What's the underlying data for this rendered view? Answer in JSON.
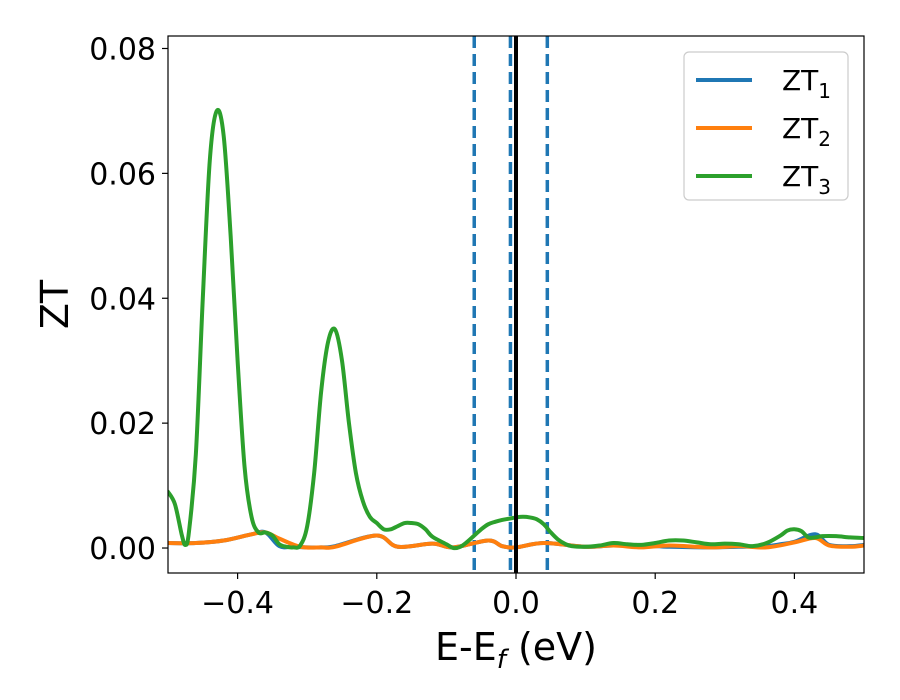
{
  "chart_data": {
    "type": "line",
    "xlabel_main": "E-E",
    "xlabel_sub": "f",
    "xlabel_unit": " (eV)",
    "ylabel": "ZT",
    "xlim": [
      -0.5,
      0.5
    ],
    "ylim": [
      -0.004,
      0.082
    ],
    "grid": false,
    "legend_position": "top-right",
    "x_ticks": [
      -0.4,
      -0.2,
      0.0,
      0.2,
      0.4
    ],
    "x_tick_labels": [
      "−0.4",
      "−0.2",
      "0.0",
      "0.2",
      "0.4"
    ],
    "y_ticks": [
      0.0,
      0.02,
      0.04,
      0.06,
      0.08
    ],
    "y_tick_labels": [
      "0.00",
      "0.02",
      "0.04",
      "0.06",
      "0.08"
    ],
    "vertical_lines": [
      {
        "x": -0.06,
        "style": "dashed",
        "color": "#1f77b4"
      },
      {
        "x": -0.008,
        "style": "dashed",
        "color": "#1f77b4"
      },
      {
        "x": 0.0,
        "style": "solid",
        "color": "#000000"
      },
      {
        "x": 0.045,
        "style": "dashed",
        "color": "#1f77b4"
      }
    ],
    "series": [
      {
        "name": "ZT",
        "sub": "1",
        "color": "#1f77b4",
        "points": [
          [
            -0.5,
            0.0008
          ],
          [
            -0.46,
            0.0008
          ],
          [
            -0.42,
            0.0012
          ],
          [
            -0.38,
            0.0022
          ],
          [
            -0.36,
            0.0025
          ],
          [
            -0.34,
            0.0003
          ],
          [
            -0.32,
            0.0002
          ],
          [
            -0.3,
            0.0001
          ],
          [
            -0.28,
            0.0001
          ],
          [
            -0.26,
            0.0003
          ],
          [
            -0.2,
            0.002
          ],
          [
            -0.17,
            0.0002
          ],
          [
            -0.12,
            0.0007
          ],
          [
            -0.09,
            0.0001
          ],
          [
            -0.04,
            0.0012
          ],
          [
            -0.02,
            0.0003
          ],
          [
            0.0,
            0.0001
          ],
          [
            0.04,
            0.0008
          ],
          [
            0.1,
            0.0002
          ],
          [
            0.14,
            0.0004
          ],
          [
            0.2,
            0.0003
          ],
          [
            0.22,
            0.0002
          ],
          [
            0.28,
            0.0001
          ],
          [
            0.32,
            0.0002
          ],
          [
            0.36,
            0.0003
          ],
          [
            0.38,
            0.0006
          ],
          [
            0.4,
            0.001
          ],
          [
            0.43,
            0.0022
          ],
          [
            0.45,
            0.0005
          ],
          [
            0.48,
            0.0003
          ],
          [
            0.5,
            0.0005
          ]
        ]
      },
      {
        "name": "ZT",
        "sub": "2",
        "color": "#ff7f0e",
        "points": [
          [
            -0.5,
            0.0008
          ],
          [
            -0.46,
            0.0008
          ],
          [
            -0.42,
            0.0012
          ],
          [
            -0.38,
            0.0022
          ],
          [
            -0.36,
            0.0025
          ],
          [
            -0.34,
            0.0015
          ],
          [
            -0.31,
            0.0002
          ],
          [
            -0.28,
            0.0001
          ],
          [
            -0.26,
            0.0002
          ],
          [
            -0.2,
            0.002
          ],
          [
            -0.17,
            0.0002
          ],
          [
            -0.12,
            0.0007
          ],
          [
            -0.09,
            0.0001
          ],
          [
            -0.04,
            0.0012
          ],
          [
            -0.02,
            0.0003
          ],
          [
            0.0,
            0.0001
          ],
          [
            0.04,
            0.0008
          ],
          [
            0.1,
            0.0002
          ],
          [
            0.14,
            0.0004
          ],
          [
            0.18,
            0.0001
          ],
          [
            0.22,
            0.0004
          ],
          [
            0.28,
            0.0001
          ],
          [
            0.32,
            0.0003
          ],
          [
            0.36,
            0.0001
          ],
          [
            0.4,
            0.0009
          ],
          [
            0.43,
            0.0016
          ],
          [
            0.45,
            0.0004
          ],
          [
            0.48,
            0.0002
          ],
          [
            0.5,
            0.0004
          ]
        ]
      },
      {
        "name": "ZT",
        "sub": "3",
        "color": "#2ca02c",
        "points": [
          [
            -0.5,
            0.009
          ],
          [
            -0.49,
            0.007
          ],
          [
            -0.48,
            0.002
          ],
          [
            -0.475,
            0.0005
          ],
          [
            -0.47,
            0.0025
          ],
          [
            -0.46,
            0.015
          ],
          [
            -0.45,
            0.04
          ],
          [
            -0.44,
            0.062
          ],
          [
            -0.43,
            0.07
          ],
          [
            -0.42,
            0.066
          ],
          [
            -0.41,
            0.05
          ],
          [
            -0.4,
            0.03
          ],
          [
            -0.39,
            0.013
          ],
          [
            -0.38,
            0.005
          ],
          [
            -0.37,
            0.0025
          ],
          [
            -0.36,
            0.0025
          ],
          [
            -0.35,
            0.002
          ],
          [
            -0.34,
            0.0006
          ],
          [
            -0.33,
            0.0002
          ],
          [
            -0.32,
            0.0001
          ],
          [
            -0.31,
            0.0004
          ],
          [
            -0.3,
            0.0035
          ],
          [
            -0.29,
            0.012
          ],
          [
            -0.28,
            0.025
          ],
          [
            -0.27,
            0.033
          ],
          [
            -0.26,
            0.035
          ],
          [
            -0.25,
            0.03
          ],
          [
            -0.24,
            0.02
          ],
          [
            -0.23,
            0.012
          ],
          [
            -0.22,
            0.0075
          ],
          [
            -0.21,
            0.005
          ],
          [
            -0.2,
            0.004
          ],
          [
            -0.19,
            0.003
          ],
          [
            -0.18,
            0.003
          ],
          [
            -0.17,
            0.0035
          ],
          [
            -0.16,
            0.004
          ],
          [
            -0.15,
            0.004
          ],
          [
            -0.14,
            0.0038
          ],
          [
            -0.13,
            0.003
          ],
          [
            -0.12,
            0.0018
          ],
          [
            -0.1,
            0.0006
          ],
          [
            -0.09,
            0.0
          ],
          [
            -0.08,
            0.0002
          ],
          [
            -0.07,
            0.001
          ],
          [
            -0.06,
            0.002
          ],
          [
            -0.05,
            0.003
          ],
          [
            -0.04,
            0.0038
          ],
          [
            -0.03,
            0.0042
          ],
          [
            -0.02,
            0.0045
          ],
          [
            -0.01,
            0.0047
          ],
          [
            0.0,
            0.0049
          ],
          [
            0.01,
            0.005
          ],
          [
            0.02,
            0.0049
          ],
          [
            0.03,
            0.0046
          ],
          [
            0.04,
            0.0038
          ],
          [
            0.05,
            0.0025
          ],
          [
            0.06,
            0.0014
          ],
          [
            0.07,
            0.0007
          ],
          [
            0.08,
            0.0003
          ],
          [
            0.1,
            0.0002
          ],
          [
            0.12,
            0.0004
          ],
          [
            0.14,
            0.0008
          ],
          [
            0.16,
            0.0006
          ],
          [
            0.18,
            0.0005
          ],
          [
            0.2,
            0.0008
          ],
          [
            0.22,
            0.0012
          ],
          [
            0.24,
            0.0012
          ],
          [
            0.26,
            0.0009
          ],
          [
            0.28,
            0.0006
          ],
          [
            0.3,
            0.0007
          ],
          [
            0.32,
            0.0006
          ],
          [
            0.34,
            0.0003
          ],
          [
            0.36,
            0.0008
          ],
          [
            0.38,
            0.002
          ],
          [
            0.39,
            0.0028
          ],
          [
            0.4,
            0.003
          ],
          [
            0.41,
            0.0027
          ],
          [
            0.42,
            0.0017
          ],
          [
            0.43,
            0.0017
          ],
          [
            0.44,
            0.0019
          ],
          [
            0.46,
            0.0019
          ],
          [
            0.48,
            0.0017
          ],
          [
            0.5,
            0.0016
          ]
        ]
      }
    ]
  }
}
